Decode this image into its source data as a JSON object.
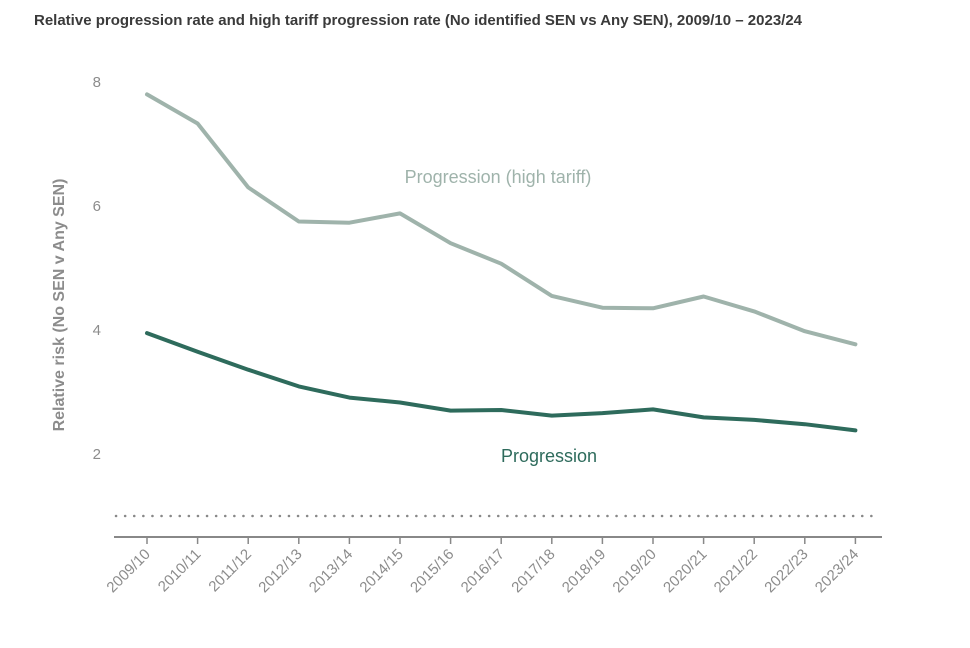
{
  "chart_data": {
    "type": "line",
    "title": "Relative progression rate and high tariff progression rate (No identified SEN vs Any SEN), 2009/10 – 2023/24",
    "xlabel": "",
    "ylabel": "Relative risk (No SEN v Any SEN)",
    "categories": [
      "2009/10",
      "2010/11",
      "2011/12",
      "2012/13",
      "2013/14",
      "2014/15",
      "2015/16",
      "2016/17",
      "2017/18",
      "2018/19",
      "2019/20",
      "2020/21",
      "2021/22",
      "2022/23",
      "2023/24"
    ],
    "y_ticks": [
      "8",
      "6",
      "4",
      "2"
    ],
    "y_tick_values": [
      8,
      6,
      4,
      2
    ],
    "ylim": [
      0.8,
      8.5
    ],
    "reference_line": 1,
    "series": [
      {
        "name": "Progression (high tariff)",
        "color": "#9fb3ab",
        "values": [
          7.8,
          7.33,
          6.3,
          5.75,
          5.73,
          5.88,
          5.4,
          5.07,
          4.55,
          4.36,
          4.35,
          4.54,
          4.3,
          3.98,
          3.77
        ]
      },
      {
        "name": "Progression",
        "color": "#2e6b5c",
        "values": [
          3.95,
          3.65,
          3.36,
          3.09,
          2.91,
          2.83,
          2.7,
          2.71,
          2.62,
          2.66,
          2.72,
          2.59,
          2.55,
          2.48,
          2.38
        ]
      }
    ],
    "colors": {
      "axis": "#888888",
      "reference": "#888888",
      "text": "#8c8c8c"
    }
  }
}
